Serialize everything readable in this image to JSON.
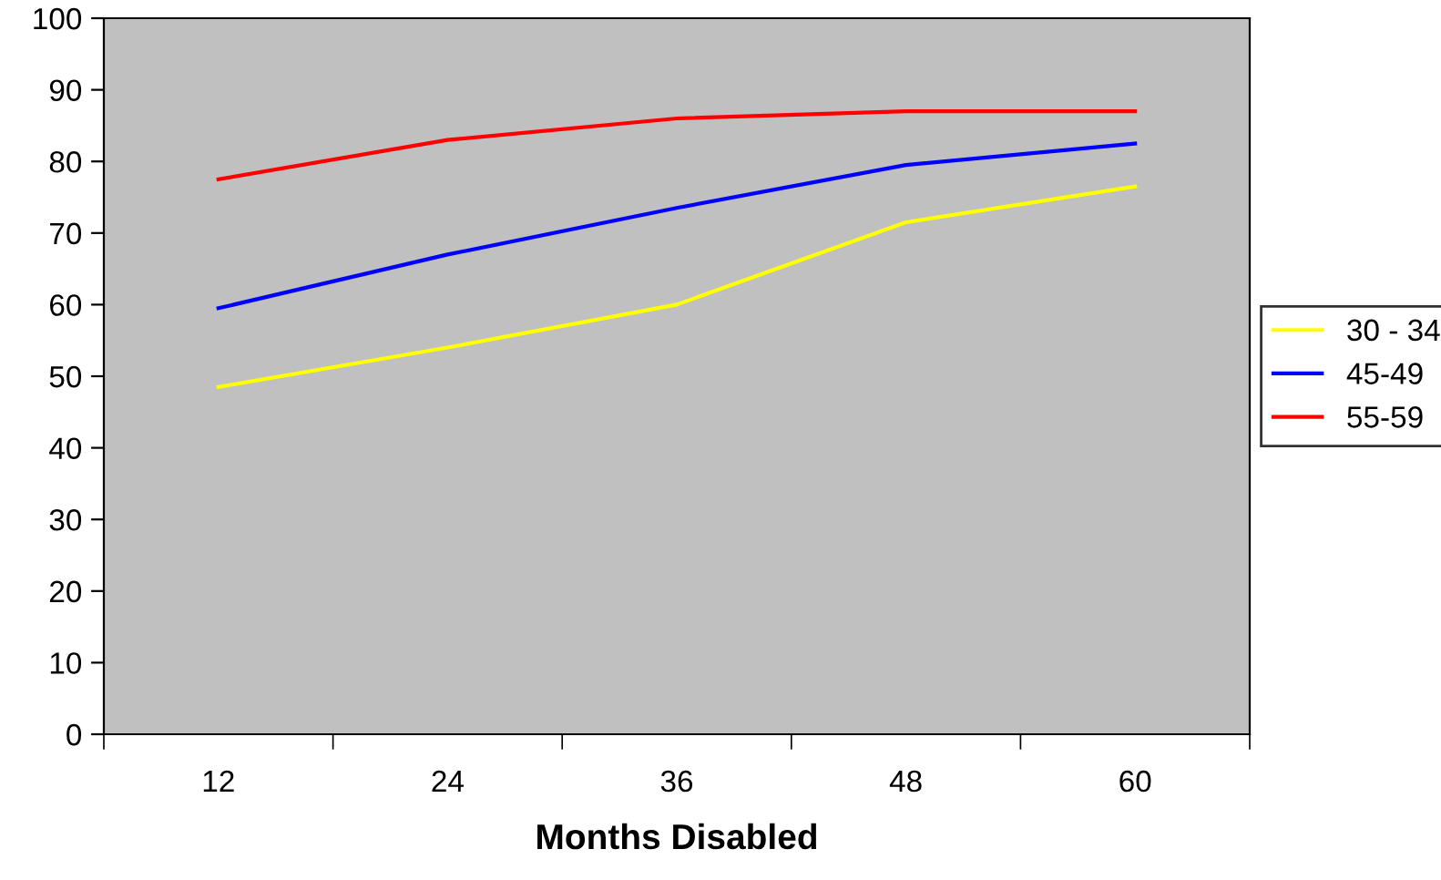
{
  "chart_data": {
    "type": "line",
    "xlabel": "Months Disabled",
    "categories": [
      "12",
      "24",
      "36",
      "48",
      "60"
    ],
    "series": [
      {
        "name": "30 - 34",
        "color": "#ffff00",
        "values": [
          48.5,
          54,
          60,
          71.5,
          76.5
        ]
      },
      {
        "name": "45-49",
        "color": "#0000ff",
        "values": [
          59.5,
          67,
          73.5,
          79.5,
          82.5
        ]
      },
      {
        "name": "55-59",
        "color": "#ff0000",
        "values": [
          77.5,
          83,
          86,
          87,
          87
        ]
      }
    ],
    "ylim": [
      0,
      100
    ],
    "yticks": [
      0,
      10,
      20,
      30,
      40,
      50,
      60,
      70,
      80,
      90,
      100
    ],
    "grid": false,
    "legend": "right",
    "marker": "none",
    "line_style": "solid"
  }
}
